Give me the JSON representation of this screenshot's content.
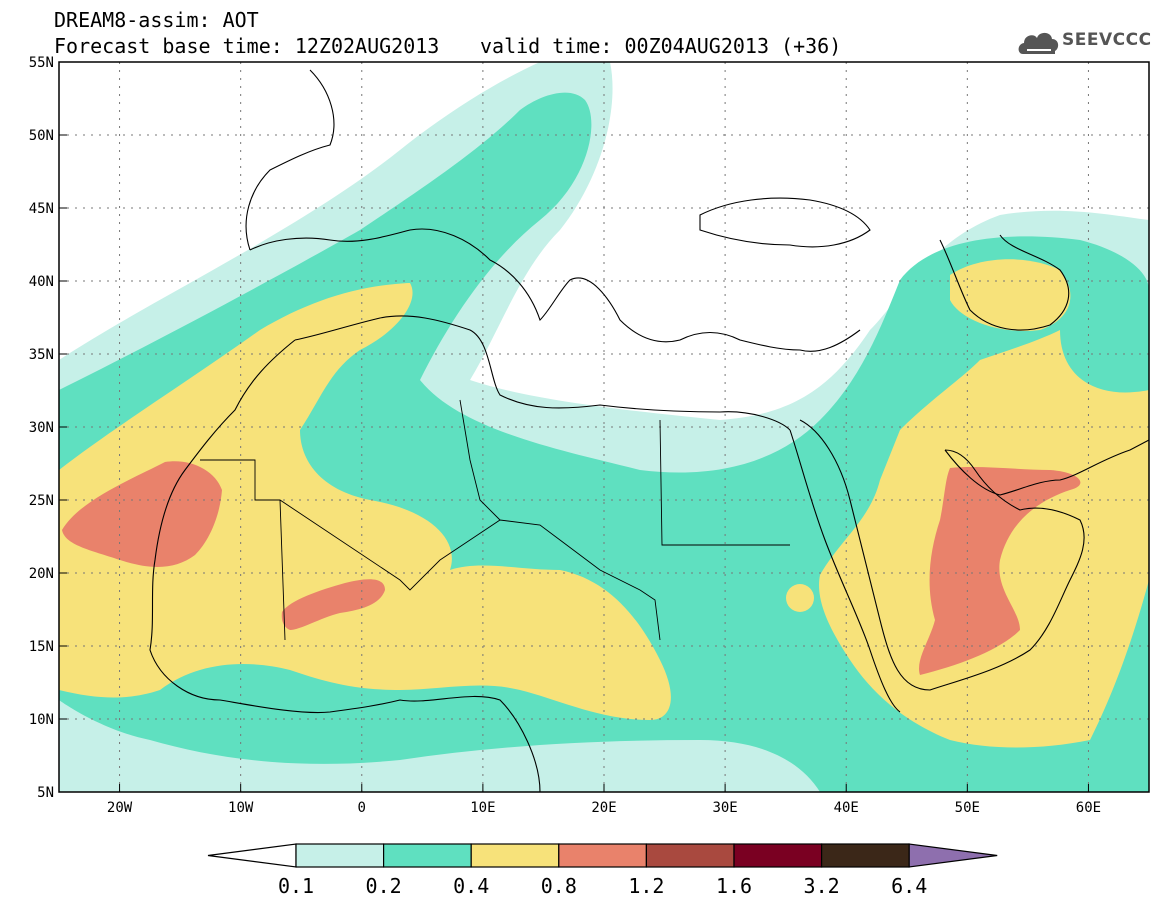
{
  "header": {
    "title_line1": "DREAM8-assim: AOT",
    "title_line2": "Forecast base time: 12Z02AUG2013",
    "valid_time": "valid time: 00Z04AUG2013 (+36)",
    "logo": "SEEVCCC",
    "logo_icon": "cloud-icon"
  },
  "map": {
    "lon_range": [
      -25,
      65
    ],
    "lat_range": [
      5,
      55
    ],
    "lon_labels": [
      "20W",
      "10W",
      "0",
      "10E",
      "20E",
      "30E",
      "40E",
      "50E",
      "60E"
    ],
    "lat_labels": [
      "55N",
      "50N",
      "45N",
      "40N",
      "35N",
      "30N",
      "25N",
      "20N",
      "15N",
      "10N",
      "5N"
    ],
    "grid": "dotted"
  },
  "colorbar": {
    "labels": [
      "0.1",
      "0.2",
      "0.4",
      "0.8",
      "1.2",
      "1.6",
      "3.2",
      "6.4"
    ],
    "colors": [
      "#ffffff",
      "#c6f0e8",
      "#5fe0c0",
      "#f7e27a",
      "#e9826b",
      "#a9493f",
      "#7a0022",
      "#3b2718",
      "#8e6fae"
    ]
  }
}
